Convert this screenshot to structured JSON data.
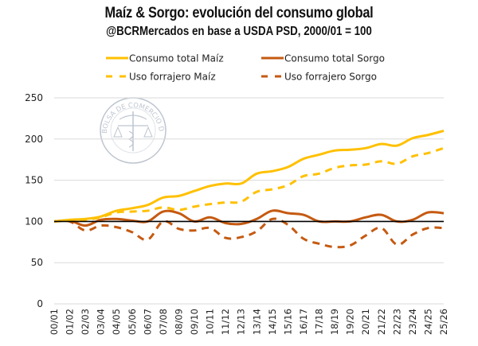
{
  "chart_data": {
    "type": "line",
    "title": "Maíz & Sorgo: evolución del consumo global",
    "subtitle": "@BCRMercados en base a USDA PSD, 2000/01 = 100",
    "xlabel": "",
    "ylabel": "",
    "ylim": [
      0,
      250
    ],
    "yticks": [
      0,
      50,
      100,
      150,
      200,
      250
    ],
    "grid": true,
    "legend_position": "top",
    "baseline": 100,
    "watermark": "BOLSA DE COMERCIO DE ROSARIO",
    "categories": [
      "00/01",
      "01/02",
      "02/03",
      "03/04",
      "04/05",
      "05/06",
      "06/07",
      "07/08",
      "08/09",
      "09/10",
      "10/11",
      "11/12",
      "12/13",
      "13/14",
      "14/15",
      "15/16",
      "16/17",
      "17/18",
      "18/19",
      "19/20",
      "20/21",
      "21/22",
      "22/23",
      "23/24",
      "24/25",
      "25/26"
    ],
    "series": [
      {
        "name": "Consumo total Maíz",
        "color": "#FFC000",
        "dash": false,
        "values": [
          100,
          102,
          103,
          106,
          113,
          116,
          120,
          129,
          131,
          137,
          143,
          146,
          146,
          158,
          161,
          166,
          176,
          181,
          186,
          187,
          189,
          194,
          192,
          201,
          205,
          210
        ]
      },
      {
        "name": "Consumo total Sorgo",
        "color": "#C55A11",
        "dash": false,
        "values": [
          100,
          101,
          95,
          102,
          103,
          101,
          100,
          112,
          110,
          100,
          105,
          98,
          97,
          103,
          113,
          110,
          108,
          100,
          100,
          100,
          105,
          108,
          100,
          102,
          111,
          110
        ]
      },
      {
        "name": "Uso forrajero Maíz",
        "color": "#FFC000",
        "dash": true,
        "values": [
          100,
          101,
          102,
          105,
          111,
          112,
          113,
          117,
          114,
          118,
          121,
          123,
          124,
          136,
          139,
          144,
          155,
          158,
          165,
          168,
          169,
          173,
          170,
          179,
          183,
          189
        ]
      },
      {
        "name": "Uso forrajero Sorgo",
        "color": "#C55A11",
        "dash": true,
        "values": [
          100,
          100,
          89,
          95,
          93,
          87,
          78,
          100,
          91,
          89,
          92,
          80,
          81,
          88,
          103,
          96,
          79,
          73,
          69,
          71,
          83,
          92,
          72,
          84,
          92,
          92
        ]
      }
    ]
  }
}
